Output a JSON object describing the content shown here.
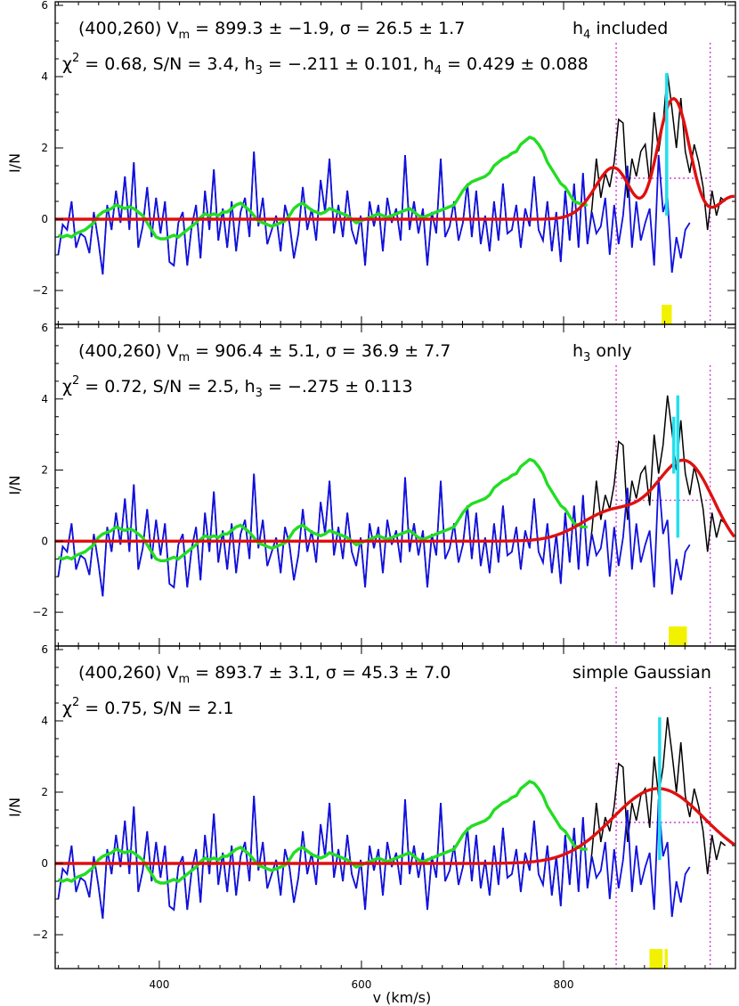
{
  "chart_data": [
    {
      "type": "line",
      "info": {
        "pos": "(400,260)",
        "vm_sym": "V",
        "vm_sub": "m",
        "vm": " = 899.3 ± −1.9, σ = 26.5 ± 1.7",
        "mode_main": "h",
        "mode_sub": "4",
        "mode_tail": " included",
        "chi_sym": "χ",
        "chi_sup": "2",
        "line2a": " = 0.68, S/N = 3.4, h",
        "h3_sub": "3",
        "h3": " = −.211 ± 0.101, h",
        "h4_sub": "4",
        "h4": " = 0.429 ± 0.088"
      },
      "ylabel": "I/N",
      "xlim": [
        297,
        970
      ],
      "ylim": [
        -2.95,
        6.1
      ],
      "yticks": [
        "6",
        "4",
        "2",
        "0",
        "−2"
      ],
      "fit": {
        "type": "gh",
        "v0": 906,
        "sigma": 26,
        "amp": 2.64,
        "h3": -0.211,
        "h4": 0.429
      },
      "cyan_lines": [
        {
          "x": 902,
          "y0": 0.1,
          "y1": 4.1
        }
      ],
      "yellow": [
        {
          "x0": 897,
          "x1": 907
        }
      ],
      "window": [
        852,
        945
      ],
      "window_level": 1.15
    },
    {
      "type": "line",
      "info": {
        "pos": "(400,260)",
        "vm_sym": "V",
        "vm_sub": "m",
        "vm": " = 906.4 ± 5.1, σ = 36.9 ± 7.7",
        "mode_main": "h",
        "mode_sub": "3",
        "mode_tail": " only",
        "chi_sym": "χ",
        "chi_sup": "2",
        "line2a": " = 0.72, S/N = 2.5, h",
        "h3_sub": "3",
        "h3": " = −.275 ± 0.113",
        "h4_sub": "",
        "h4": ""
      },
      "ylabel": "I/N",
      "xlim": [
        297,
        970
      ],
      "ylim": [
        -2.95,
        6.1
      ],
      "yticks": [
        "6",
        "4",
        "2",
        "0",
        "−2"
      ],
      "fit": {
        "type": "gh",
        "v0": 906,
        "sigma": 37,
        "amp": 2.1,
        "h3": -0.275,
        "h4": 0
      },
      "cyan_lines": [
        {
          "x": 913,
          "y0": 0.1,
          "y1": 4.1
        },
        {
          "x": 909,
          "y0": 1.9,
          "y1": 3.5
        }
      ],
      "yellow": [
        {
          "x0": 904,
          "x1": 922
        }
      ],
      "window": [
        852,
        945
      ],
      "window_level": 1.15
    },
    {
      "type": "line",
      "info": {
        "pos": "(400,260)",
        "vm_sym": "V",
        "vm_sub": "m",
        "vm": " = 893.7 ± 3.1, σ = 45.3 ± 7.0",
        "mode_main": "simple Gaussian",
        "mode_sub": "",
        "mode_tail": "",
        "chi_sym": "χ",
        "chi_sup": "2",
        "line2a": " = 0.75, S/N = 2.1",
        "h3_sub": "",
        "h3": "",
        "h4_sub": "",
        "h4": ""
      },
      "ylabel": "I/N",
      "xlim": [
        297,
        970
      ],
      "ylim": [
        -2.95,
        6.1
      ],
      "xticks": [
        400,
        600,
        800
      ],
      "xlabel": "v (km/s)",
      "yticks": [
        "6",
        "4",
        "2",
        "0",
        "−2"
      ],
      "fit": {
        "type": "gh",
        "v0": 893.7,
        "sigma": 45.3,
        "amp": 2.1,
        "h3": 0,
        "h4": 0
      },
      "cyan_lines": [
        {
          "x": 895,
          "y0": 0.1,
          "y1": 4.1
        }
      ],
      "yellow": [
        {
          "x0": 885,
          "x1": 898
        },
        {
          "x0": 900,
          "x1": 903
        }
      ],
      "window": [
        852,
        945
      ],
      "window_level": 1.15
    }
  ],
  "spectra": {
    "x_start": 300,
    "x_step": 4.4,
    "blue": [
      -1.0,
      -0.15,
      -0.3,
      0.5,
      -0.8,
      -0.4,
      -0.5,
      -0.95,
      0.2,
      -0.6,
      -1.55,
      0.4,
      -0.3,
      0.8,
      -0.1,
      1.2,
      -0.3,
      1.6,
      -0.8,
      -0.2,
      0.9,
      -0.5,
      0.6,
      -0.4,
      0.5,
      -1.2,
      -1.3,
      -0.1,
      0.2,
      -1.3,
      -0.2,
      0.4,
      -1.1,
      0.8,
      -0.3,
      1.4,
      -0.6,
      0.3,
      -0.8,
      0.5,
      -0.9,
      0.2,
      0.6,
      -0.5,
      1.9,
      -0.2,
      0.6,
      -0.7,
      -0.3,
      0.1,
      -0.9,
      0.4,
      -0.1,
      -1.1,
      -0.4,
      0.9,
      -0.3,
      0.3,
      -0.6,
      1.1,
      0.2,
      1.7,
      -0.4,
      0.4,
      -0.5,
      0.8,
      -0.3,
      -0.7,
      0.1,
      -1.3,
      0.5,
      -0.2,
      0.4,
      -0.9,
      0.6,
      -0.1,
      0.3,
      -0.6,
      1.8,
      -0.3,
      0.5,
      -0.4,
      0.3,
      -1.3,
      0.2,
      -0.4,
      1.7,
      -0.5,
      -0.2,
      0.5,
      -0.6,
      -0.1,
      1.0,
      -0.5,
      0.8,
      -0.7,
      0.1,
      -0.9,
      0.5,
      -0.6,
      1.0,
      -0.4,
      -0.3,
      0.4,
      -0.8,
      0.3,
      -0.2,
      1.2,
      -0.3,
      -0.6,
      0.5,
      -0.9,
      0.2,
      -1.2,
      0.8,
      -0.6,
      1.0,
      -0.8,
      1.3,
      -0.7,
      0.2,
      -0.4,
      -0.2,
      0.6,
      -1.0,
      0.4,
      -0.7,
      0.1,
      1.5,
      -0.8,
      0.5,
      -0.6,
      -0.1,
      0.3,
      -1.3,
      1.8,
      0.2,
      0.6,
      -1.5,
      -0.5,
      -1.1,
      -0.3,
      -0.1
    ],
    "black": [
      -1.0,
      -0.15,
      -0.3,
      0.5,
      -0.8,
      -0.4,
      -0.5,
      -0.95,
      0.2,
      -0.6,
      -1.55,
      0.4,
      -0.3,
      0.8,
      -0.1,
      1.2,
      -0.3,
      1.6,
      -0.8,
      -0.2,
      0.9,
      -0.5,
      0.6,
      -0.4,
      0.5,
      -1.2,
      -1.3,
      -0.1,
      0.2,
      -1.3,
      -0.2,
      0.4,
      -1.1,
      0.8,
      -0.3,
      1.4,
      -0.6,
      0.3,
      -0.8,
      0.5,
      -0.9,
      0.2,
      0.6,
      -0.5,
      1.9,
      -0.2,
      0.6,
      -0.7,
      -0.3,
      0.1,
      -0.9,
      0.4,
      -0.1,
      -1.1,
      -0.4,
      0.9,
      -0.3,
      0.3,
      -0.6,
      1.1,
      0.2,
      1.7,
      -0.4,
      0.4,
      -0.5,
      0.8,
      -0.3,
      -0.7,
      0.1,
      -1.3,
      0.5,
      -0.2,
      0.4,
      -0.9,
      0.6,
      -0.1,
      0.3,
      -0.6,
      1.8,
      -0.3,
      0.5,
      -0.4,
      0.3,
      -1.3,
      0.2,
      -0.4,
      1.7,
      -0.5,
      -0.2,
      0.5,
      -0.6,
      -0.1,
      1.0,
      -0.5,
      0.8,
      -0.7,
      0.1,
      -0.9,
      0.5,
      -0.6,
      1.0,
      -0.4,
      -0.3,
      0.4,
      -0.8,
      0.3,
      -0.2,
      1.2,
      -0.3,
      -0.6,
      0.5,
      -0.9,
      0.2,
      -1.2,
      0.8,
      -0.6,
      1.0,
      -0.8,
      1.3,
      -0.7,
      0.3,
      1.7,
      0.6,
      1.3,
      0.9,
      1.6,
      2.8,
      2.7,
      0.6,
      1.7,
      1.2,
      1.9,
      2.1,
      1.0,
      3.0,
      1.9,
      2.7,
      4.1,
      3.1,
      2.0,
      3.4,
      1.9,
      1.3,
      2.1,
      1.6,
      0.9,
      -0.3,
      0.8,
      0.1,
      0.6,
      0.5
    ],
    "green": [
      -0.45,
      -0.5,
      -0.45,
      -0.5,
      -0.4,
      -0.35,
      -0.3,
      -0.2,
      -0.1,
      0.1,
      0.2,
      0.25,
      0.3,
      0.4,
      0.35,
      0.3,
      0.35,
      0.3,
      0.2,
      0.1,
      -0.1,
      -0.3,
      -0.5,
      -0.55,
      -0.55,
      -0.5,
      -0.45,
      -0.5,
      -0.4,
      -0.3,
      -0.2,
      -0.1,
      0.05,
      0.15,
      0.1,
      0.15,
      0.1,
      0.2,
      0.2,
      0.3,
      0.4,
      0.45,
      0.35,
      0.25,
      0.1,
      -0.05,
      -0.1,
      -0.15,
      -0.2,
      -0.15,
      -0.1,
      -0.05,
      0.1,
      0.3,
      0.4,
      0.45,
      0.35,
      0.25,
      0.2,
      0.15,
      0.2,
      0.3,
      0.25,
      0.2,
      0.15,
      0.1,
      0.0,
      -0.1,
      -0.05,
      0.0,
      0.05,
      0.1,
      0.15,
      0.1,
      0.05,
      0.1,
      0.15,
      0.2,
      0.25,
      0.3,
      0.2,
      0.1,
      0.05,
      0.1,
      0.15,
      0.2,
      0.25,
      0.3,
      0.35,
      0.4,
      0.6,
      0.8,
      0.95,
      1.05,
      1.1,
      1.15,
      1.2,
      1.3,
      1.5,
      1.6,
      1.7,
      1.75,
      1.85,
      1.9,
      2.1,
      2.2,
      2.3,
      2.25,
      2.1,
      1.9,
      1.6,
      1.4,
      1.2,
      1.0,
      0.9,
      0.7,
      0.5,
      0.45,
      0.4,
      0.4
    ]
  }
}
